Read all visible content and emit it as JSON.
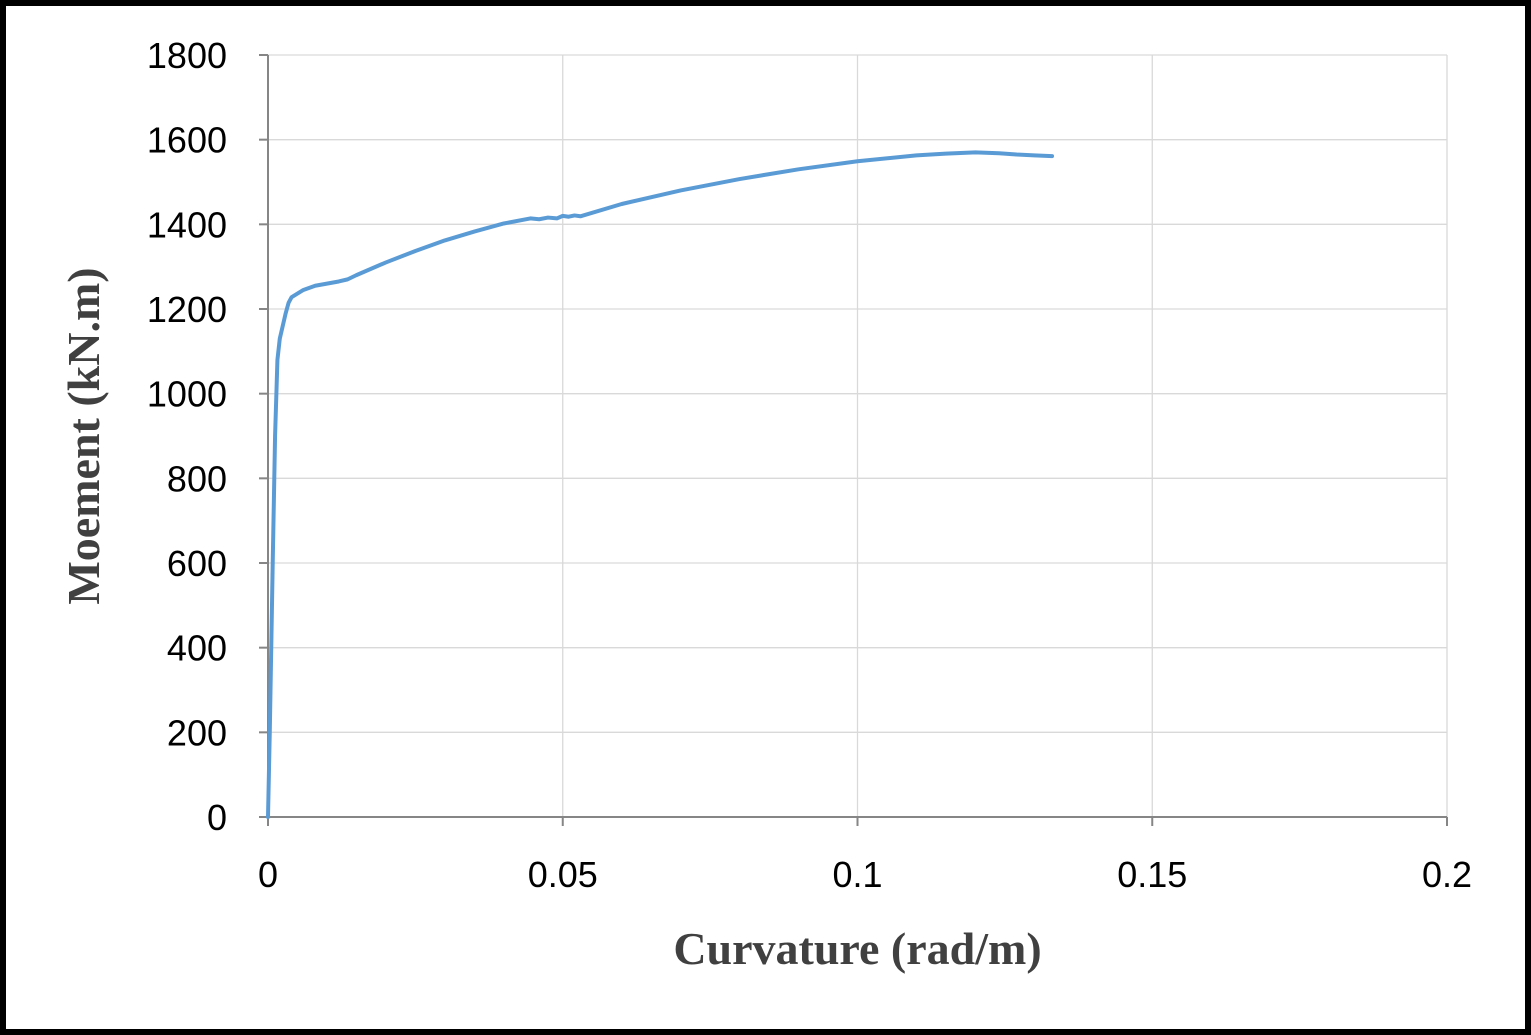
{
  "chart_data": {
    "type": "line",
    "xlabel": "Curvature (rad/m)",
    "ylabel": "Moement (kN.m)",
    "xlim": [
      0,
      0.2
    ],
    "ylim": [
      0,
      1800
    ],
    "x_ticks": [
      "0",
      "0.05",
      "0.1",
      "0.15",
      "0.2"
    ],
    "y_ticks": [
      "0",
      "200",
      "400",
      "600",
      "800",
      "1000",
      "1200",
      "1400",
      "1600",
      "1800"
    ],
    "grid": true,
    "legend": "none",
    "series": [
      {
        "color": "#5b9bd5",
        "x": [
          0,
          0.0003,
          0.0008,
          0.0012,
          0.0016,
          0.002,
          0.0025,
          0.003,
          0.0035,
          0.004,
          0.006,
          0.008,
          0.01,
          0.012,
          0.0135,
          0.015,
          0.02,
          0.025,
          0.03,
          0.035,
          0.04,
          0.0445,
          0.046,
          0.0475,
          0.049,
          0.05,
          0.051,
          0.052,
          0.053,
          0.06,
          0.07,
          0.08,
          0.09,
          0.1,
          0.11,
          0.115,
          0.12,
          0.124,
          0.127,
          0.13,
          0.133
        ],
        "y": [
          0,
          200,
          600,
          900,
          1080,
          1130,
          1160,
          1190,
          1215,
          1228,
          1245,
          1255,
          1260,
          1265,
          1270,
          1280,
          1310,
          1337,
          1362,
          1383,
          1402,
          1414,
          1412,
          1416,
          1414,
          1420,
          1418,
          1421,
          1419,
          1448,
          1480,
          1507,
          1530,
          1549,
          1563,
          1567,
          1570,
          1568,
          1565,
          1563,
          1561
        ]
      }
    ]
  }
}
